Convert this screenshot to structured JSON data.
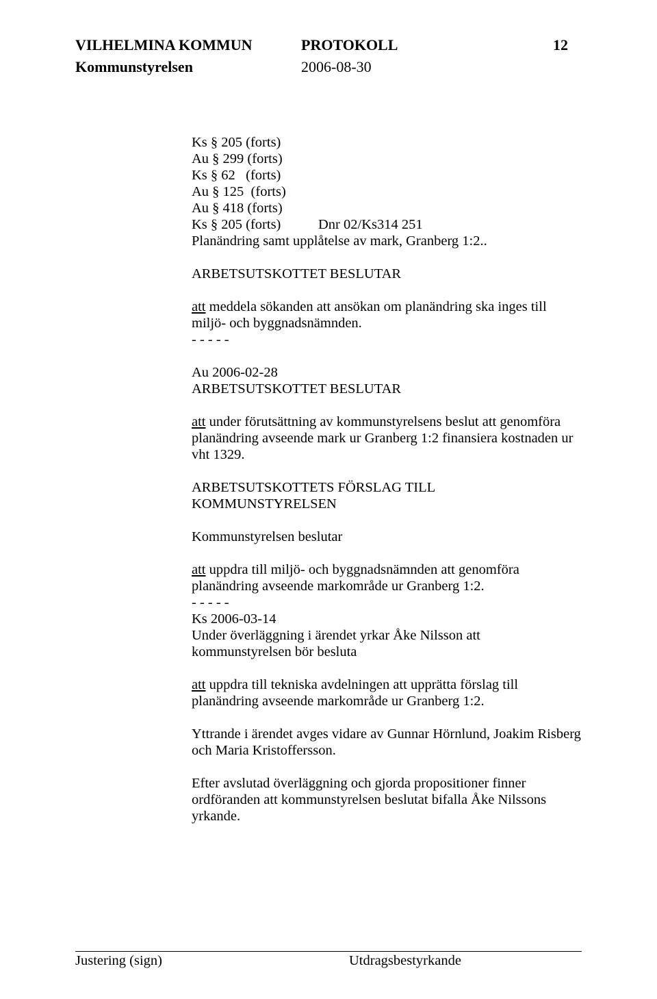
{
  "header": {
    "org": "VILHELMINA KOMMUN",
    "doc_type": "PROTOKOLL",
    "page_no": "12",
    "body_name": "Kommunstyrelsen",
    "date": "2006-08-30"
  },
  "refs": {
    "l1": "Ks § 205 (forts)",
    "l2": "Au § 299 (forts)",
    "l3": "Ks § 62   (forts)",
    "l4": "Au § 125  (forts)",
    "l5": "Au § 418 (forts)",
    "l6_left": "Ks § 205 (forts)",
    "l6_right": "Dnr 02/Ks314    251",
    "title": "Planändring samt upplåtelse av mark, Granberg 1:2.."
  },
  "p1_head": "ARBETSUTSKOTTET BESLUTAR",
  "p1_body": "att meddela sökanden att ansökan om planändring ska inges till miljö- och byggnadsnämnden.",
  "dashes": "- - - - -",
  "p2_date": "Au 2006-02-28",
  "p2_head": "ARBETSUTSKOTTET BESLUTAR",
  "p2_body": "att under förutsättning av kommunstyrelsens beslut att genomföra planändring avseende mark ur Granberg 1:2 finansiera kostnaden ur vht 1329.",
  "p3_head": "ARBETSUTSKOTTETS FÖRSLAG TILL KOMMUNSTYRELSEN",
  "p3_sub": "Kommunstyrelsen beslutar",
  "p3_body": "att uppdra till miljö- och byggnadsnämnden att genomföra planändring avseende markområde ur Granberg 1:2.",
  "p4_date": "Ks 2006-03-14",
  "p4_body": "Under överläggning i ärendet yrkar Åke Nilsson att kommunstyrelsen bör besluta",
  "p5_body": "att uppdra till tekniska avdelningen att upprätta förslag till planändring avseende markområde ur Granberg 1:2.",
  "p6_body": "Yttrande i ärendet avges vidare av Gunnar Hörnlund, Joakim Risberg och Maria Kristoffersson.",
  "p7_body": "Efter avslutad överläggning och gjorda propositioner finner ordföranden att kommunstyrelsen beslutat bifalla Åke Nilssons yrkande.",
  "footer": {
    "left": "Justering (sign)",
    "right": "Utdragsbestyrkande"
  },
  "style": {
    "font_family": "Times New Roman",
    "header_fontsize_pt": 16,
    "body_fontsize_pt": 15,
    "text_color": "#000000",
    "background_color": "#ffffff",
    "rule_color": "#000000"
  }
}
